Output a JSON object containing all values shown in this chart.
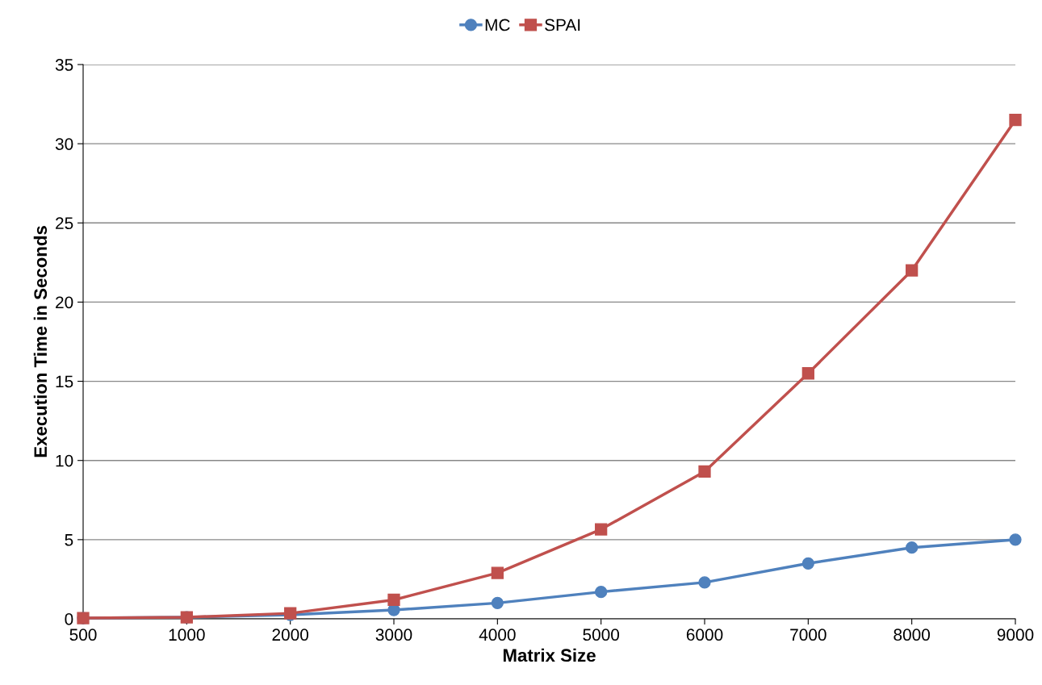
{
  "chart_data": {
    "type": "line",
    "xlabel": "Matrix Size",
    "ylabel": "Execution Time in Seconds",
    "categories": [
      "500",
      "1000",
      "2000",
      "3000",
      "4000",
      "5000",
      "6000",
      "7000",
      "8000",
      "9000"
    ],
    "series": [
      {
        "name": "MC",
        "color": "#4f81bd",
        "marker": "circle",
        "values": [
          0.05,
          0.1,
          0.25,
          0.56,
          1.0,
          1.7,
          2.3,
          3.5,
          4.5,
          5.0
        ]
      },
      {
        "name": "SPAI",
        "color": "#c0504d",
        "marker": "square",
        "values": [
          0.05,
          0.1,
          0.35,
          1.2,
          2.9,
          5.65,
          9.3,
          15.5,
          22.0,
          31.5
        ]
      }
    ],
    "ylim": [
      0,
      35
    ],
    "yticks": [
      0,
      5,
      10,
      15,
      20,
      25,
      30,
      35
    ],
    "grid": "y",
    "legend": "top",
    "line_style": "solid"
  }
}
